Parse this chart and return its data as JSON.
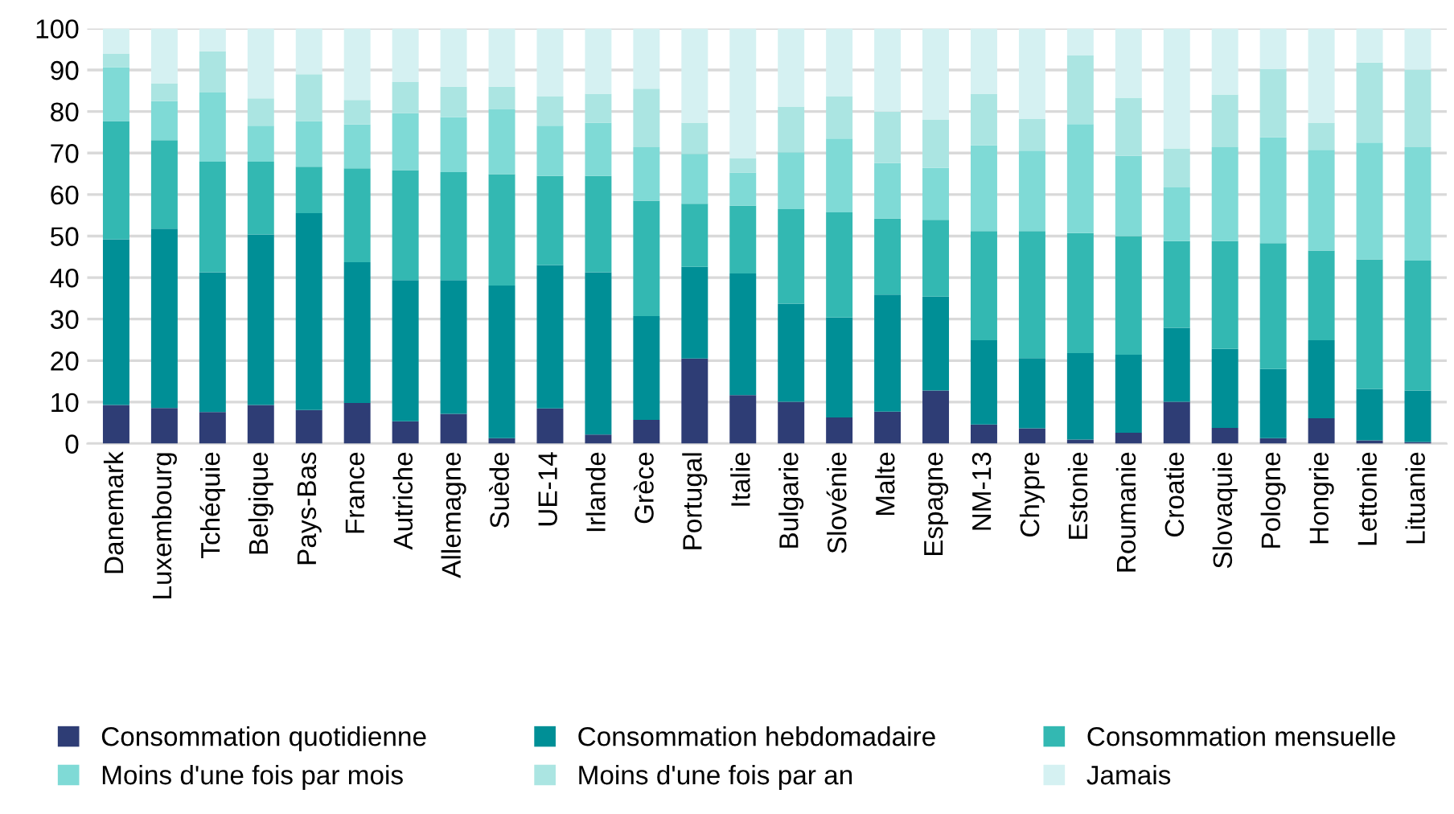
{
  "chart_data": {
    "type": "bar",
    "stacked": true,
    "categories": [
      "Danemark",
      "Luxembourg",
      "Tchéquie",
      "Belgique",
      "Pays-Bas",
      "France",
      "Autriche",
      "Allemagne",
      "Suède",
      "UE-14",
      "Irlande",
      "Grèce",
      "Portugal",
      "Italie",
      "Bulgarie",
      "Slovénie",
      "Malte",
      "Espagne",
      "NM-13",
      "Chypre",
      "Estonie",
      "Roumanie",
      "Croatie",
      "Slovaquie",
      "Pologne",
      "Hongrie",
      "Lettonie",
      "Lituanie"
    ],
    "series": [
      {
        "name": "Consommation quotidienne",
        "color": "#2e3d75",
        "values": [
          9.3,
          8.6,
          7.6,
          9.3,
          8.1,
          9.8,
          5.4,
          7.2,
          1.3,
          8.5,
          2.2,
          5.7,
          20.5,
          11.7,
          10.1,
          6.3,
          7.7,
          12.8,
          4.6,
          3.7,
          1.0,
          2.6,
          10.1,
          3.8,
          1.3,
          6.1,
          0.8,
          0.4
        ]
      },
      {
        "name": "Consommation hebdomadaire",
        "color": "#008f96",
        "values": [
          39.9,
          43.2,
          33.7,
          41.1,
          47.4,
          33.9,
          34.0,
          32.2,
          36.8,
          34.5,
          39.1,
          25.0,
          22.1,
          29.3,
          23.6,
          24.1,
          28.2,
          22.6,
          20.3,
          16.9,
          20.8,
          18.8,
          17.8,
          19.0,
          16.7,
          18.8,
          12.4,
          12.4
        ]
      },
      {
        "name": "Consommation mensuelle",
        "color": "#33b8b2",
        "values": [
          28.5,
          21.3,
          26.6,
          17.5,
          11.2,
          22.6,
          26.5,
          26.0,
          26.8,
          21.5,
          23.2,
          27.8,
          15.2,
          16.3,
          22.8,
          25.3,
          18.3,
          18.5,
          26.3,
          30.6,
          28.9,
          28.6,
          20.9,
          26.0,
          30.3,
          21.6,
          31.2,
          31.3
        ]
      },
      {
        "name": "Moins d'une fois par mois",
        "color": "#7fdad6",
        "values": [
          13.0,
          9.4,
          16.7,
          8.7,
          11.0,
          10.6,
          13.7,
          13.2,
          15.6,
          12.1,
          12.8,
          12.9,
          12.0,
          8.0,
          13.7,
          17.8,
          13.4,
          12.5,
          20.7,
          19.4,
          26.3,
          19.3,
          12.9,
          22.6,
          25.5,
          24.3,
          28.1,
          27.3
        ]
      },
      {
        "name": "Moins d'une fois par an",
        "color": "#abe5e2",
        "values": [
          3.2,
          4.3,
          9.9,
          6.6,
          11.3,
          5.9,
          7.5,
          7.4,
          5.5,
          7.1,
          7.0,
          14.1,
          7.5,
          3.5,
          11.0,
          10.2,
          12.4,
          11.7,
          12.4,
          7.6,
          16.5,
          14.0,
          9.4,
          12.7,
          16.4,
          6.5,
          19.3,
          18.7
        ]
      },
      {
        "name": "Jamais",
        "color": "#d5f1f2",
        "values": [
          6.1,
          13.2,
          5.5,
          16.8,
          11.0,
          17.2,
          12.9,
          14.0,
          14.0,
          16.3,
          15.7,
          14.5,
          22.7,
          31.2,
          18.8,
          16.3,
          20.0,
          21.9,
          15.7,
          21.8,
          6.5,
          16.7,
          28.9,
          15.9,
          9.8,
          22.7,
          8.2,
          9.9
        ]
      }
    ],
    "ylim": [
      0,
      100
    ],
    "yticks": [
      0,
      10,
      20,
      30,
      40,
      50,
      60,
      70,
      80,
      90,
      100
    ],
    "grid": "y",
    "legend": "bottom"
  }
}
